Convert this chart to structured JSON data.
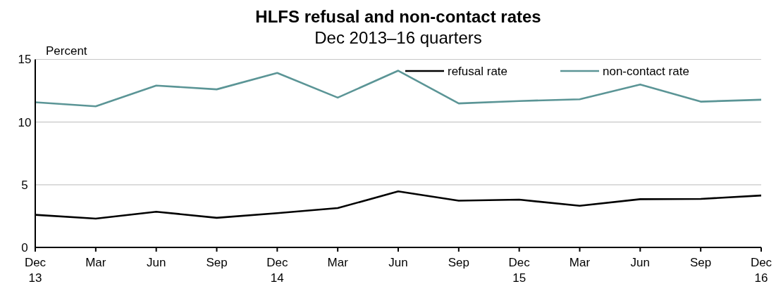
{
  "chart_data": {
    "type": "line",
    "title": "HLFS refusal and non-contact rates",
    "subtitle": "Dec 2013–16 quarters",
    "ylabel": "Percent",
    "categories": [
      "Dec\n13",
      "Mar",
      "Jun",
      "Sep",
      "Dec\n14",
      "Mar",
      "Jun",
      "Sep",
      "Dec\n15",
      "Mar",
      "Jun",
      "Sep",
      "Dec\n16"
    ],
    "series": [
      {
        "name": "refusal rate",
        "color": "#000000",
        "values": [
          2.6,
          2.3,
          2.85,
          2.36,
          2.73,
          3.14,
          4.47,
          3.73,
          3.81,
          3.32,
          3.85,
          3.87,
          4.14
        ]
      },
      {
        "name": "non-contact rate",
        "color": "#5b9596",
        "values": [
          11.58,
          11.26,
          12.91,
          12.61,
          13.92,
          11.95,
          14.1,
          11.49,
          11.68,
          11.82,
          13.0,
          11.63,
          11.78
        ]
      }
    ],
    "ylim": [
      0,
      15
    ],
    "yticks": [
      0,
      5,
      10,
      15
    ],
    "grid": "y",
    "legend": "top right",
    "marker": "none",
    "line_style": "solid"
  }
}
